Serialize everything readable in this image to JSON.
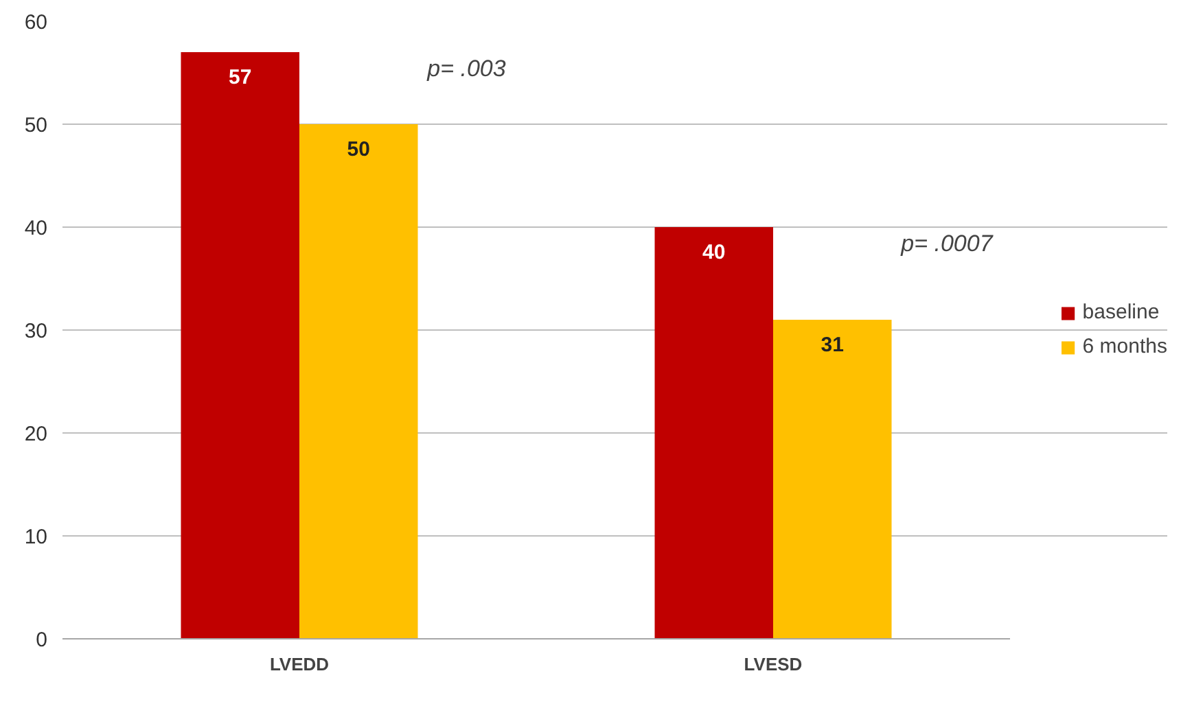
{
  "chart_data": {
    "type": "bar",
    "categories": [
      "LVEDD",
      "LVESD"
    ],
    "series": [
      {
        "name": "baseline",
        "color": "#c00000",
        "values": [
          57,
          40
        ]
      },
      {
        "name": "6 months",
        "color": "#ffc000",
        "values": [
          50,
          31
        ]
      }
    ],
    "ylim": [
      0,
      60
    ],
    "yticks": [
      0,
      10,
      20,
      30,
      40,
      50,
      60
    ],
    "grid": "y",
    "legend": "right",
    "data_labels": true,
    "annotations": [
      "p= .003",
      "p= .0007"
    ]
  }
}
